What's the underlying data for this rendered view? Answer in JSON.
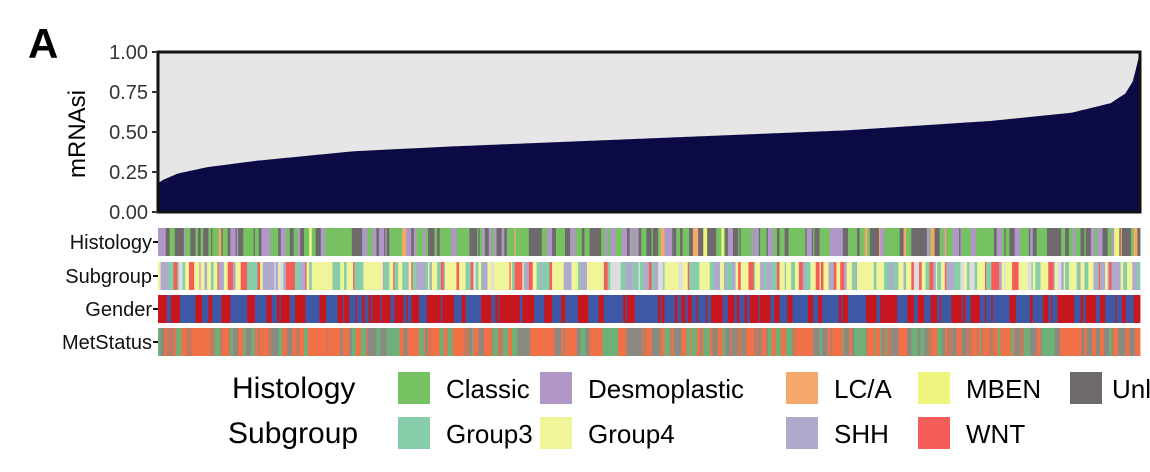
{
  "panel_label": "A",
  "chart_data": {
    "type": "area",
    "ylabel": "mRNAsi",
    "ylim": [
      0,
      1
    ],
    "yticks": [
      "0.00",
      "0.25",
      "0.50",
      "0.75",
      "1.00"
    ],
    "sample_count": 760,
    "sorted_values_anchors": {
      "fraction": [
        0,
        0.005,
        0.02,
        0.05,
        0.1,
        0.2,
        0.3,
        0.5,
        0.7,
        0.85,
        0.93,
        0.97,
        0.985,
        0.993,
        0.998,
        1
      ],
      "value": [
        0.18,
        0.2,
        0.24,
        0.28,
        0.32,
        0.38,
        0.41,
        0.46,
        0.51,
        0.57,
        0.62,
        0.68,
        0.74,
        0.82,
        0.95,
        1.0
      ]
    },
    "value_color": "#0b0a45",
    "background_color": "#e6e6e6",
    "tracks": [
      {
        "name": "Histology",
        "mix": [
          [
            "#76c162",
            0.46
          ],
          [
            "#b097c7",
            0.2
          ],
          [
            "#6e6a6b",
            0.28
          ],
          [
            "#f4a86c",
            0.04
          ],
          [
            "#eef57e",
            0.02
          ]
        ]
      },
      {
        "name": "Subgroup",
        "mix": [
          [
            "#f1f59a",
            0.4
          ],
          [
            "#87cda9",
            0.2
          ],
          [
            "#b0a9ce",
            0.22
          ],
          [
            "#f45e59",
            0.12
          ],
          [
            "#dddddd",
            0.06
          ]
        ]
      },
      {
        "name": "Gender",
        "mix": [
          [
            "#3d59a5",
            0.55
          ],
          [
            "#c8161e",
            0.45
          ]
        ]
      },
      {
        "name": "MetStatus",
        "mix": [
          [
            "#f07148",
            0.4
          ],
          [
            "#8a8a80",
            0.3
          ],
          [
            "#6fb079",
            0.2
          ],
          [
            "#c07a60",
            0.1
          ]
        ]
      }
    ]
  },
  "legend": {
    "histology": {
      "title": "Histology",
      "items": [
        {
          "label": "Classic",
          "color": "#76c162"
        },
        {
          "label": "Desmoplastic",
          "color": "#b097c7"
        },
        {
          "label": "LC/A",
          "color": "#f4a86c"
        },
        {
          "label": "MBEN",
          "color": "#eef57e"
        },
        {
          "label": "Unl",
          "color": "#6e6a6b"
        }
      ]
    },
    "subgroup": {
      "title": "Subgroup",
      "items": [
        {
          "label": "Group3",
          "color": "#87cda9"
        },
        {
          "label": "Group4",
          "color": "#f1f59a"
        },
        {
          "label": "SHH",
          "color": "#b0a9ce"
        },
        {
          "label": "WNT",
          "color": "#f45e59"
        }
      ]
    }
  }
}
